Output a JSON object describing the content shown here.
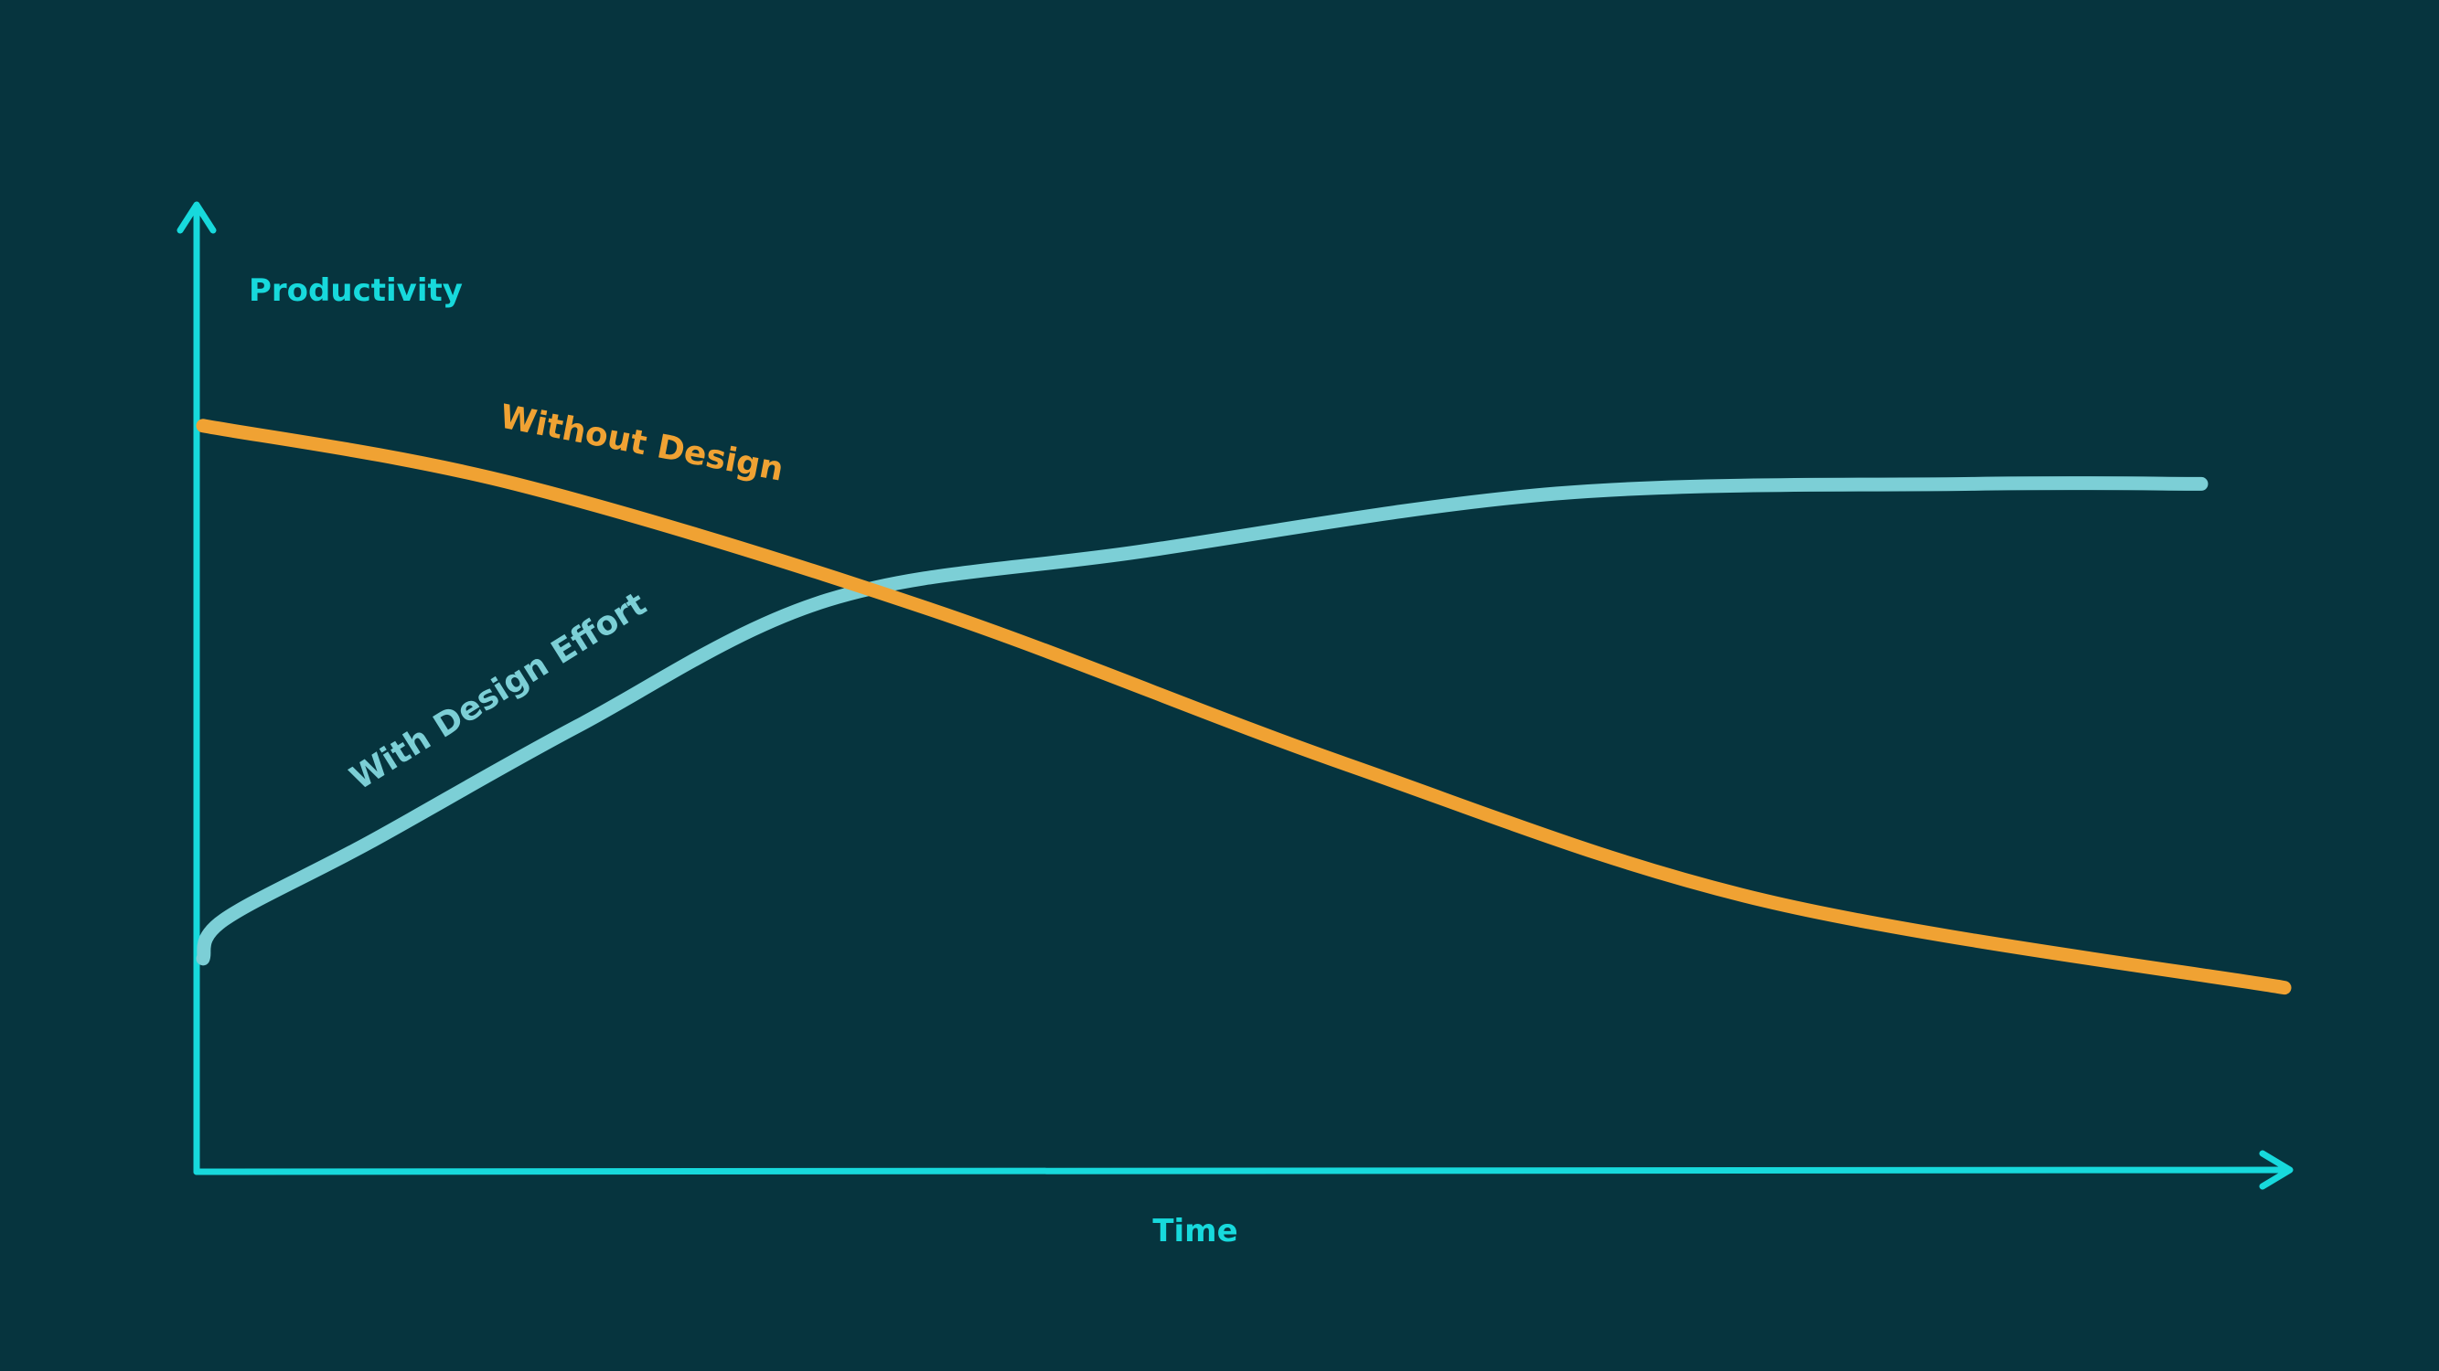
{
  "chart_data": {
    "type": "line",
    "title": "",
    "xlabel": "Time",
    "ylabel": "Productivity",
    "xlim": [
      0,
      100
    ],
    "ylim": [
      0,
      100
    ],
    "grid": false,
    "legend": "none",
    "series": [
      {
        "name": "Without Design",
        "color": "#f0a233",
        "x": [
          0,
          15,
          35,
          55,
          75,
          100
        ],
        "y": [
          77,
          71,
          58,
          42,
          28,
          19
        ]
      },
      {
        "name": "With Design Effort",
        "color": "#7ccfd6",
        "x": [
          0,
          1,
          8,
          18,
          30,
          45,
          65,
          85,
          96
        ],
        "y": [
          22,
          26,
          34,
          46,
          59,
          64,
          70,
          71,
          71
        ]
      }
    ]
  },
  "colors": {
    "background": "#06343e",
    "axis": "#17d9dc"
  }
}
